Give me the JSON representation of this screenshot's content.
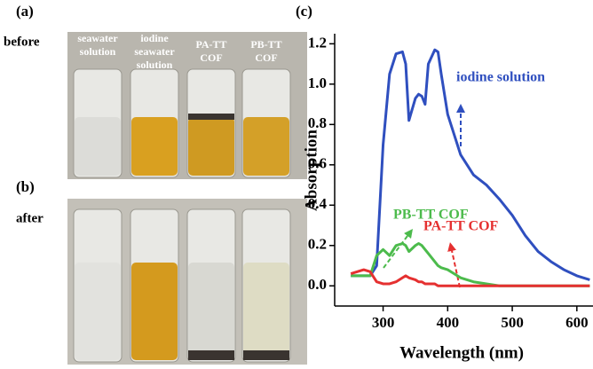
{
  "panels": {
    "a_label": "(a)",
    "before": "before",
    "b_label": "(b)",
    "after": "after",
    "c_label": "(c)",
    "vial_labels": [
      [
        "seawater",
        "solution"
      ],
      [
        "iodine",
        "seawater",
        "solution"
      ],
      [
        "PA-TT",
        "COF"
      ],
      [
        "PB-TT",
        "COF"
      ]
    ]
  },
  "chart_data": {
    "type": "line",
    "xlabel": "Wavelength (nm)",
    "ylabel": "Absorption",
    "x": [
      250,
      270,
      280,
      290,
      300,
      310,
      320,
      330,
      335,
      340,
      350,
      355,
      360,
      365,
      370,
      380,
      385,
      390,
      400,
      420,
      440,
      460,
      480,
      500,
      520,
      540,
      560,
      580,
      600,
      620
    ],
    "series": [
      {
        "name": "iodine solution",
        "color": "#2f4fbf",
        "values": [
          0.05,
          0.05,
          0.05,
          0.1,
          0.7,
          1.05,
          1.15,
          1.16,
          1.1,
          0.82,
          0.93,
          0.95,
          0.94,
          0.9,
          1.1,
          1.17,
          1.16,
          1.05,
          0.85,
          0.65,
          0.55,
          0.5,
          0.43,
          0.35,
          0.25,
          0.17,
          0.12,
          0.08,
          0.05,
          0.03
        ]
      },
      {
        "name": "PB-TT COF",
        "color": "#4cbb4c",
        "values": [
          0.05,
          0.05,
          0.05,
          0.15,
          0.18,
          0.15,
          0.2,
          0.21,
          0.2,
          0.17,
          0.2,
          0.21,
          0.2,
          0.18,
          0.16,
          0.12,
          0.1,
          0.09,
          0.08,
          0.04,
          0.02,
          0.01,
          0,
          0,
          0,
          0,
          0,
          0,
          0,
          0
        ]
      },
      {
        "name": "PA-TT COF",
        "color": "#e53030",
        "values": [
          0.06,
          0.08,
          0.07,
          0.02,
          0.01,
          0.01,
          0.02,
          0.04,
          0.05,
          0.04,
          0.03,
          0.02,
          0.02,
          0.01,
          0.01,
          0.01,
          0,
          0,
          0,
          0,
          0,
          0,
          0,
          0,
          0,
          0,
          0,
          0,
          0,
          0
        ]
      }
    ],
    "xlim": [
      225,
      625
    ],
    "ylim": [
      -0.1,
      1.25
    ],
    "xticks": [
      300,
      400,
      500,
      600
    ],
    "yticks": [
      {
        "value": 0,
        "label": "0.0"
      },
      0.2,
      0.4,
      0.6,
      0.8,
      {
        "value": 1,
        "label": "1.0"
      },
      1.2
    ]
  }
}
